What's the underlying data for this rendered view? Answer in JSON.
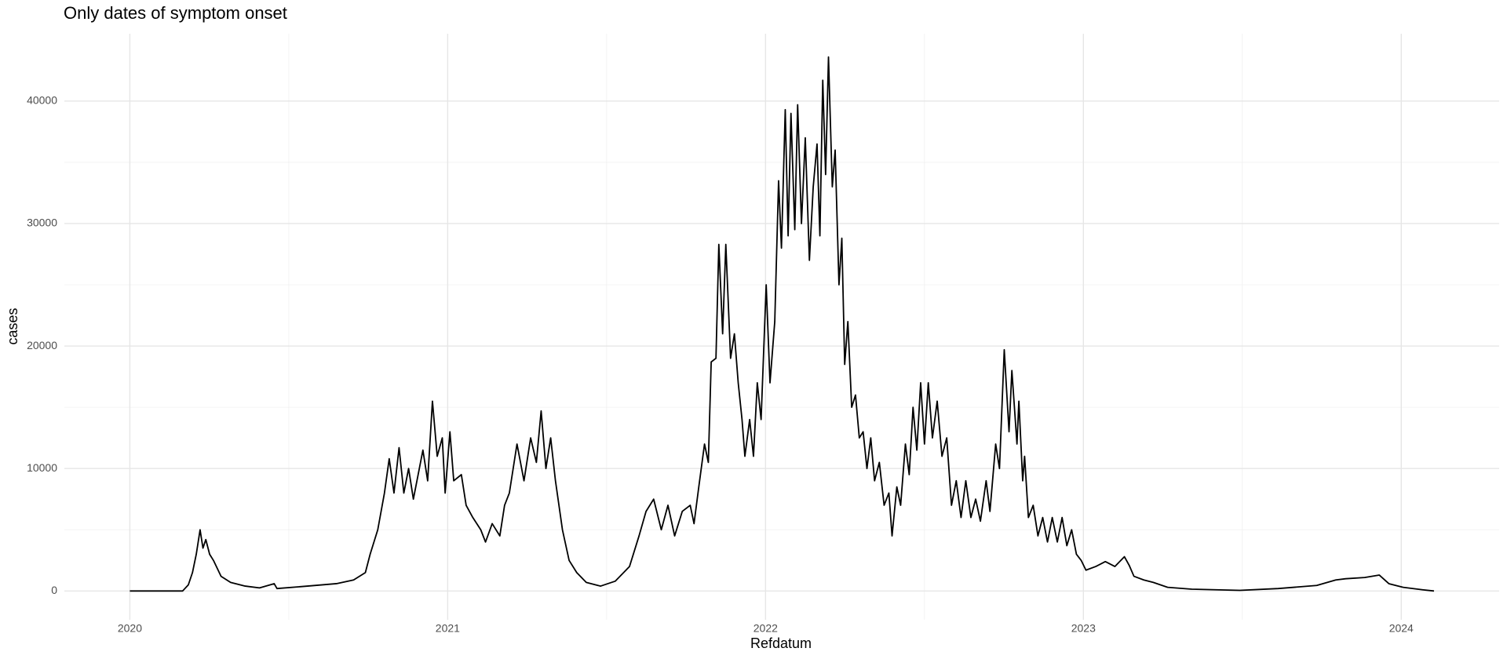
{
  "chart_data": {
    "type": "line",
    "title": "Only dates of symptom onset",
    "x_label": "Refdatum",
    "y_label": "cases",
    "xlim": [
      2019.794,
      2024.308
    ],
    "ylim": [
      -2350,
      45500
    ],
    "xticks": [
      2020,
      2021,
      2022,
      2023,
      2024
    ],
    "yticks": [
      0,
      10000,
      20000,
      30000,
      40000
    ],
    "xminor": [
      2020.5,
      2021.5,
      2022.5,
      2023.5
    ],
    "yminor": [
      5000,
      15000,
      25000,
      35000
    ],
    "grid": true,
    "series": [
      {
        "name": "cases",
        "color": "#000000",
        "x": [
          2020.0,
          2020.166,
          2020.184,
          2020.197,
          2020.209,
          2020.221,
          2020.23,
          2020.239,
          2020.251,
          2020.263,
          2020.287,
          2020.317,
          2020.363,
          2020.408,
          2020.454,
          2020.463,
          2020.559,
          2020.65,
          2020.704,
          2020.741,
          2020.756,
          2020.78,
          2020.801,
          2020.816,
          2020.831,
          2020.847,
          2020.862,
          2020.877,
          2020.892,
          2020.922,
          2020.937,
          2020.952,
          2020.967,
          2020.983,
          2020.992,
          2021.007,
          2021.019,
          2021.043,
          2021.058,
          2021.079,
          2021.104,
          2021.119,
          2021.14,
          2021.164,
          2021.179,
          2021.194,
          2021.218,
          2021.24,
          2021.261,
          2021.279,
          2021.294,
          2021.309,
          2021.324,
          2021.339,
          2021.361,
          2021.382,
          2021.406,
          2021.436,
          2021.481,
          2021.527,
          2021.572,
          2021.602,
          2021.624,
          2021.648,
          2021.672,
          2021.693,
          2021.714,
          2021.738,
          2021.763,
          2021.775,
          2021.79,
          2021.808,
          2021.82,
          2021.829,
          2021.844,
          2021.853,
          2021.865,
          2021.875,
          2021.89,
          2021.902,
          2021.914,
          2021.926,
          2021.935,
          2021.95,
          2021.962,
          2021.974,
          2021.986,
          2022.002,
          2022.014,
          2022.029,
          2022.041,
          2022.05,
          2022.062,
          2022.071,
          2022.08,
          2022.092,
          2022.101,
          2022.113,
          2022.125,
          2022.138,
          2022.15,
          2022.162,
          2022.171,
          2022.18,
          2022.189,
          2022.198,
          2022.21,
          2022.219,
          2022.231,
          2022.24,
          2022.249,
          2022.259,
          2022.271,
          2022.283,
          2022.295,
          2022.307,
          2022.319,
          2022.331,
          2022.343,
          2022.358,
          2022.373,
          2022.388,
          2022.398,
          2022.413,
          2022.425,
          2022.44,
          2022.452,
          2022.464,
          2022.476,
          2022.488,
          2022.5,
          2022.512,
          2022.525,
          2022.54,
          2022.555,
          2022.57,
          2022.585,
          2022.6,
          2022.615,
          2022.63,
          2022.646,
          2022.661,
          2022.676,
          2022.694,
          2022.706,
          2022.724,
          2022.736,
          2022.751,
          2022.766,
          2022.775,
          2022.791,
          2022.797,
          2022.809,
          2022.815,
          2022.827,
          2022.842,
          2022.857,
          2022.872,
          2022.887,
          2022.902,
          2022.918,
          2022.933,
          2022.948,
          2022.963,
          2022.978,
          2022.993,
          2023.008,
          2023.039,
          2023.069,
          2023.099,
          2023.129,
          2023.144,
          2023.159,
          2023.19,
          2023.22,
          2023.265,
          2023.341,
          2023.492,
          2023.613,
          2023.734,
          2023.794,
          2023.825,
          2023.885,
          2023.931,
          2023.961,
          2024.006,
          2024.067,
          2024.103
        ],
        "values": [
          0,
          0,
          500,
          1500,
          3000,
          5000,
          3500,
          4200,
          3000,
          2500,
          1200,
          700,
          400,
          250,
          600,
          200,
          400,
          600,
          900,
          1500,
          3000,
          5000,
          8000,
          10800,
          8000,
          11700,
          8000,
          10000,
          7500,
          11500,
          9000,
          15500,
          11000,
          12500,
          8000,
          13000,
          9000,
          9500,
          7000,
          6000,
          5000,
          4000,
          5500,
          4500,
          7000,
          8000,
          12000,
          9000,
          12500,
          10500,
          14700,
          10000,
          12500,
          9000,
          5000,
          2500,
          1500,
          700,
          400,
          800,
          2000,
          4500,
          6500,
          7500,
          5000,
          7000,
          4500,
          6500,
          7000,
          5500,
          8500,
          12000,
          10500,
          18700,
          19000,
          28300,
          21000,
          28300,
          19000,
          21000,
          17000,
          14000,
          11000,
          14000,
          11000,
          17000,
          14000,
          25000,
          17000,
          22000,
          33500,
          28000,
          39300,
          29000,
          39000,
          29500,
          39700,
          30000,
          37000,
          27000,
          33000,
          36500,
          29000,
          41700,
          34000,
          43600,
          33000,
          36000,
          25000,
          28800,
          18500,
          22000,
          15000,
          16000,
          12500,
          13000,
          10000,
          12500,
          9000,
          10500,
          7000,
          8000,
          4500,
          8500,
          7000,
          12000,
          9500,
          15000,
          11500,
          17000,
          12000,
          17000,
          12500,
          15500,
          11000,
          12500,
          7000,
          9000,
          6000,
          9000,
          6000,
          7500,
          5700,
          9000,
          6500,
          12000,
          10000,
          19700,
          13000,
          18000,
          12000,
          15500,
          9000,
          11000,
          6000,
          7000,
          4500,
          6000,
          4000,
          6000,
          4000,
          6000,
          3700,
          5000,
          3000,
          2500,
          1700,
          2000,
          2400,
          2000,
          2800,
          2100,
          1200,
          900,
          700,
          300,
          150,
          50,
          200,
          450,
          900,
          1000,
          1100,
          1300,
          600,
          300,
          100,
          0
        ]
      }
    ]
  }
}
